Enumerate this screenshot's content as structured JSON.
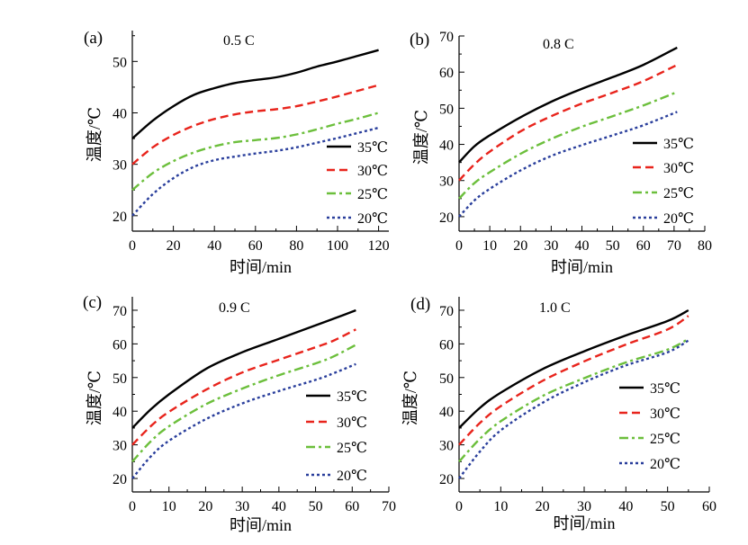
{
  "chart_data": [
    {
      "type": "line",
      "panel_label": "(a)",
      "annotation": "0.5 C",
      "xlabel": "时间/min",
      "ylabel": "温度/℃",
      "xlim": [
        0,
        125
      ],
      "ylim": [
        17,
        56
      ],
      "xticks": [
        "0",
        "20",
        "40",
        "60",
        "80",
        "100",
        "120"
      ],
      "yticks": [
        "20",
        "30",
        "40",
        "50"
      ],
      "legend_position": "right",
      "series": [
        {
          "name": "35℃",
          "color": "#000000",
          "dash": "solid",
          "x": [
            0,
            10,
            20,
            30,
            40,
            50,
            60,
            70,
            80,
            90,
            100,
            110,
            120
          ],
          "y": [
            35.0,
            38.5,
            41.3,
            43.5,
            44.8,
            45.8,
            46.4,
            46.9,
            47.8,
            49.0,
            50.0,
            51.1,
            52.2
          ]
        },
        {
          "name": "30℃",
          "color": "#e8241c",
          "dash": "dash",
          "x": [
            0,
            10,
            20,
            30,
            40,
            50,
            60,
            70,
            80,
            90,
            100,
            110,
            120
          ],
          "y": [
            30.0,
            33.3,
            35.7,
            37.5,
            38.8,
            39.7,
            40.3,
            40.7,
            41.3,
            42.2,
            43.2,
            44.3,
            45.4
          ]
        },
        {
          "name": "25℃",
          "color": "#6cbf3c",
          "dash": "dashdot",
          "x": [
            0,
            10,
            20,
            30,
            40,
            50,
            60,
            70,
            80,
            90,
            100,
            110,
            120
          ],
          "y": [
            25.0,
            28.3,
            30.6,
            32.3,
            33.5,
            34.3,
            34.7,
            35.1,
            35.8,
            36.8,
            37.9,
            38.9,
            40.0
          ]
        },
        {
          "name": "20℃",
          "color": "#2a3f9c",
          "dash": "dot",
          "x": [
            0,
            10,
            20,
            30,
            40,
            50,
            60,
            70,
            80,
            90,
            100,
            110,
            120
          ],
          "y": [
            20.0,
            24.2,
            27.3,
            29.5,
            30.8,
            31.5,
            32.1,
            32.6,
            33.3,
            34.2,
            35.1,
            36.1,
            37.1
          ]
        }
      ]
    },
    {
      "type": "line",
      "panel_label": "(b)",
      "annotation": "0.8 C",
      "xlabel": "时间/min",
      "ylabel": "温度/℃",
      "xlim": [
        0,
        80
      ],
      "ylim": [
        16,
        70
      ],
      "xticks": [
        "0",
        "10",
        "20",
        "30",
        "40",
        "50",
        "60",
        "70",
        "80"
      ],
      "yticks": [
        "20",
        "30",
        "40",
        "50",
        "60",
        "70"
      ],
      "legend_position": "right",
      "series": [
        {
          "name": "35℃",
          "color": "#000000",
          "dash": "solid",
          "x": [
            0,
            5,
            10,
            20,
            30,
            40,
            50,
            60,
            71
          ],
          "y": [
            35.0,
            39.5,
            42.5,
            47.5,
            51.8,
            55.4,
            58.6,
            62.0,
            66.8
          ]
        },
        {
          "name": "30℃",
          "color": "#e8241c",
          "dash": "dash",
          "x": [
            0,
            5,
            10,
            20,
            30,
            40,
            50,
            60,
            71
          ],
          "y": [
            30.0,
            34.5,
            38.0,
            43.6,
            47.8,
            51.3,
            54.3,
            57.5,
            62.0
          ]
        },
        {
          "name": "25℃",
          "color": "#6cbf3c",
          "dash": "dashdot",
          "x": [
            0,
            5,
            10,
            20,
            30,
            40,
            50,
            60,
            71
          ],
          "y": [
            25.0,
            29.3,
            32.3,
            37.4,
            41.5,
            44.9,
            47.8,
            50.8,
            54.5
          ]
        },
        {
          "name": "20℃",
          "color": "#2a3f9c",
          "dash": "dot",
          "x": [
            0,
            5,
            10,
            20,
            30,
            40,
            50,
            60,
            71
          ],
          "y": [
            20.0,
            24.5,
            27.7,
            32.8,
            36.8,
            39.8,
            42.5,
            45.3,
            49.0
          ]
        }
      ]
    },
    {
      "type": "line",
      "panel_label": "(c)",
      "annotation": "0.9 C",
      "xlabel": "时间/min",
      "ylabel": "温度/℃",
      "xlim": [
        0,
        70
      ],
      "ylim": [
        16,
        74
      ],
      "xticks": [
        "0",
        "10",
        "20",
        "30",
        "40",
        "50",
        "60",
        "70"
      ],
      "yticks": [
        "20",
        "30",
        "40",
        "50",
        "60",
        "70"
      ],
      "legend_position": "right",
      "series": [
        {
          "name": "35℃",
          "color": "#000000",
          "dash": "solid",
          "x": [
            0,
            5,
            10,
            20,
            30,
            40,
            50,
            55,
            61
          ],
          "y": [
            35.0,
            40.5,
            45.0,
            52.5,
            57.5,
            61.5,
            65.5,
            67.5,
            70.0
          ]
        },
        {
          "name": "30℃",
          "color": "#e8241c",
          "dash": "dash",
          "x": [
            0,
            5,
            10,
            20,
            30,
            40,
            50,
            55,
            61
          ],
          "y": [
            30.0,
            35.5,
            39.8,
            46.3,
            51.5,
            55.3,
            59.0,
            61.0,
            64.3
          ]
        },
        {
          "name": "25℃",
          "color": "#6cbf3c",
          "dash": "dashdot",
          "x": [
            0,
            5,
            10,
            20,
            30,
            40,
            50,
            55,
            61
          ],
          "y": [
            25.0,
            31.0,
            35.5,
            42.0,
            46.7,
            50.7,
            54.2,
            56.3,
            59.7
          ]
        },
        {
          "name": "20℃",
          "color": "#2a3f9c",
          "dash": "dot",
          "x": [
            0,
            5,
            10,
            20,
            30,
            40,
            50,
            55,
            61
          ],
          "y": [
            20.0,
            26.5,
            31.2,
            37.6,
            42.3,
            46.0,
            49.3,
            51.3,
            54.0
          ]
        }
      ]
    },
    {
      "type": "line",
      "panel_label": "(d)",
      "annotation": "1.0 C",
      "xlabel": "时间/min",
      "ylabel": "温度/℃",
      "xlim": [
        0,
        60
      ],
      "ylim": [
        16,
        74
      ],
      "xticks": [
        "0",
        "10",
        "20",
        "30",
        "40",
        "50",
        "60"
      ],
      "yticks": [
        "20",
        "30",
        "40",
        "50",
        "60",
        "70"
      ],
      "legend_position": "right",
      "series": [
        {
          "name": "35℃",
          "color": "#000000",
          "dash": "solid",
          "x": [
            0,
            5,
            10,
            20,
            30,
            40,
            50,
            55
          ],
          "y": [
            35.0,
            41.0,
            45.5,
            52.5,
            57.8,
            62.5,
            66.8,
            70.0
          ]
        },
        {
          "name": "30℃",
          "color": "#e8241c",
          "dash": "dash",
          "x": [
            0,
            5,
            10,
            20,
            30,
            40,
            50,
            55
          ],
          "y": [
            30.0,
            36.5,
            41.5,
            49.0,
            54.8,
            59.8,
            64.3,
            68.3
          ]
        },
        {
          "name": "25℃",
          "color": "#6cbf3c",
          "dash": "dashdot",
          "x": [
            0,
            5,
            10,
            20,
            30,
            40,
            50,
            55
          ],
          "y": [
            25.0,
            31.8,
            37.0,
            44.5,
            49.8,
            54.5,
            58.3,
            61.5
          ]
        },
        {
          "name": "20℃",
          "color": "#2a3f9c",
          "dash": "dot",
          "x": [
            0,
            5,
            10,
            20,
            30,
            40,
            50,
            55
          ],
          "y": [
            20.0,
            28.0,
            34.3,
            42.5,
            48.6,
            53.6,
            57.5,
            61.0
          ]
        }
      ]
    }
  ]
}
